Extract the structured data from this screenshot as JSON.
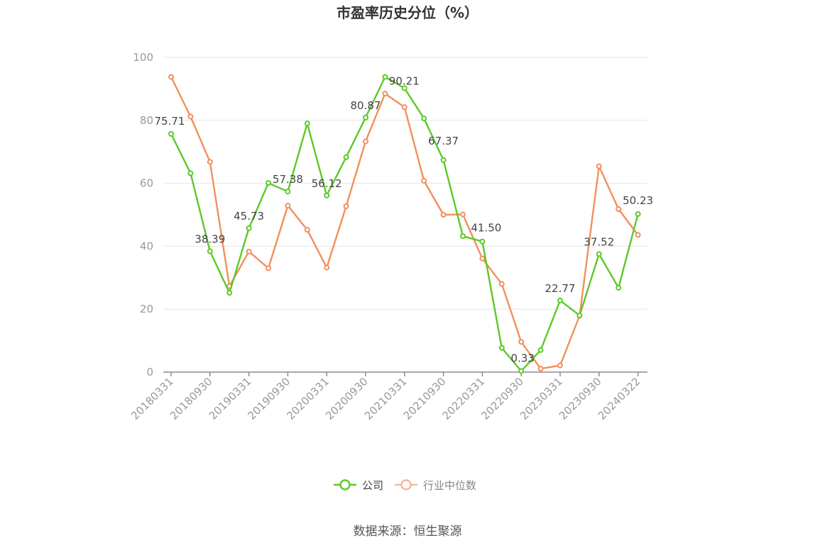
{
  "chart_data": {
    "type": "line",
    "title": "市盈率历史分位（%）",
    "ylim": [
      0,
      100
    ],
    "y_ticks": [
      0,
      20,
      40,
      60,
      80,
      100
    ],
    "x_tick_labels": [
      "20180331",
      "20180930",
      "20190331",
      "20190930",
      "20200331",
      "20200930",
      "20210331",
      "20210930",
      "20220331",
      "20220930",
      "20230331",
      "20230930",
      "20240322"
    ],
    "x_tick_every": 2,
    "grid": true,
    "legend_position": "bottom-center",
    "series": [
      {
        "name": "公司",
        "color": "#5cc928",
        "values": [
          75.71,
          63.2,
          38.39,
          25.2,
          45.73,
          60.1,
          57.38,
          79.0,
          56.12,
          68.3,
          80.87,
          93.8,
          90.21,
          80.6,
          67.37,
          43.2,
          41.5,
          7.7,
          0.33,
          7.0,
          22.77,
          18.0,
          37.52,
          26.8,
          50.23
        ],
        "labels": {
          "0": "75.71",
          "2": "38.39",
          "4": "45.73",
          "6": "57.38",
          "8": "56.12",
          "10": "80.87",
          "12": "90.21",
          "14": "67.37",
          "16": "41.50",
          "18": "0.33",
          "20": "22.77",
          "22": "37.52",
          "24": "50.23"
        }
      },
      {
        "name": "行业中位数",
        "color": "#f28f5c",
        "values": [
          93.8,
          81.2,
          66.8,
          27.3,
          38.3,
          33.0,
          52.9,
          45.2,
          33.2,
          52.7,
          73.3,
          88.5,
          84.2,
          60.8,
          50.0,
          50.1,
          36.1,
          28.0,
          9.6,
          1.1,
          2.1,
          17.9,
          65.4,
          51.8,
          43.6
        ]
      }
    ]
  },
  "source_text": "数据来源：恒生聚源"
}
